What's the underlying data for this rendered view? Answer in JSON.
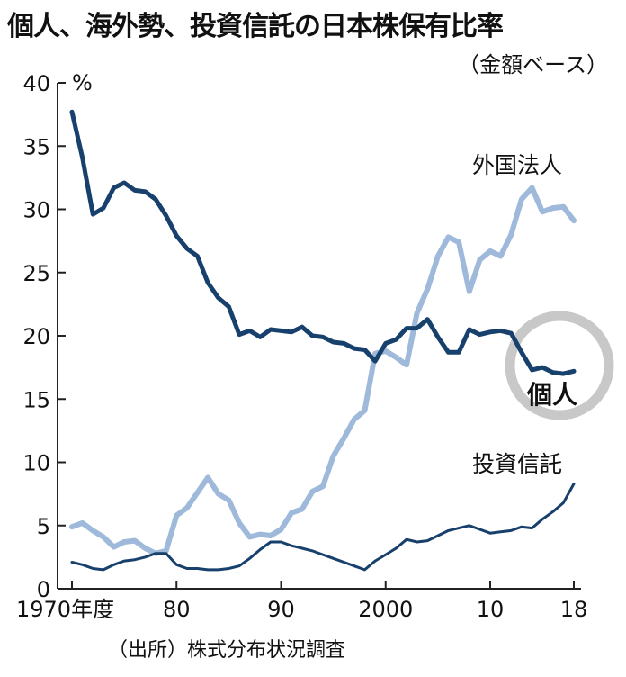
{
  "header": {
    "title": "個人、海外勢、投資信託の日本株保有比率",
    "subtitle": "（金額ベース）"
  },
  "footer": {
    "source": "（出所）株式分布状況調査"
  },
  "chart_data": {
    "type": "line",
    "ylabel": "%",
    "ylim": [
      0,
      40
    ],
    "yticks": [
      0,
      5,
      10,
      15,
      20,
      25,
      30,
      35,
      40
    ],
    "xlim": [
      1970,
      2018
    ],
    "xticks": [
      {
        "value": 1970,
        "label": "1970年度"
      },
      {
        "value": 1980,
        "label": "80"
      },
      {
        "value": 1990,
        "label": "90"
      },
      {
        "value": 2000,
        "label": "2000"
      },
      {
        "value": 2010,
        "label": "10"
      },
      {
        "value": 2018,
        "label": "18"
      }
    ],
    "x": [
      1970,
      1971,
      1972,
      1973,
      1974,
      1975,
      1976,
      1977,
      1978,
      1979,
      1980,
      1981,
      1982,
      1983,
      1984,
      1985,
      1986,
      1987,
      1988,
      1989,
      1990,
      1991,
      1992,
      1993,
      1994,
      1995,
      1996,
      1997,
      1998,
      1999,
      2000,
      2001,
      2002,
      2003,
      2004,
      2005,
      2006,
      2007,
      2008,
      2009,
      2010,
      2011,
      2012,
      2013,
      2014,
      2015,
      2016,
      2017,
      2018
    ],
    "series": [
      {
        "name": "個人",
        "color": "#17406d",
        "highlighted": true,
        "values": [
          37.7,
          34.1,
          29.6,
          30.1,
          31.7,
          32.1,
          31.5,
          31.4,
          30.8,
          29.5,
          27.9,
          26.9,
          26.3,
          24.2,
          23.0,
          22.3,
          20.1,
          20.4,
          19.9,
          20.5,
          20.4,
          20.3,
          20.7,
          20.0,
          19.9,
          19.5,
          19.4,
          19.0,
          18.9,
          18.0,
          19.4,
          19.7,
          20.6,
          20.6,
          21.3,
          19.9,
          18.7,
          18.7,
          20.5,
          20.1,
          20.3,
          20.4,
          20.2,
          18.7,
          17.3,
          17.5,
          17.1,
          17.0,
          17.2
        ]
      },
      {
        "name": "外国法人",
        "color": "#9eb9d9",
        "values": [
          4.9,
          5.2,
          4.6,
          4.1,
          3.3,
          3.7,
          3.8,
          3.2,
          2.8,
          3.0,
          5.8,
          6.4,
          7.6,
          8.8,
          7.5,
          7.0,
          5.2,
          4.1,
          4.3,
          4.2,
          4.7,
          6.0,
          6.3,
          7.7,
          8.1,
          10.5,
          11.9,
          13.4,
          14.1,
          18.6,
          18.8,
          18.3,
          17.7,
          21.8,
          23.7,
          26.3,
          27.8,
          27.4,
          23.5,
          26.0,
          26.7,
          26.3,
          28.0,
          30.8,
          31.7,
          29.8,
          30.1,
          30.2,
          29.1
        ]
      },
      {
        "name": "投資信託",
        "color": "#17406d",
        "values": [
          2.1,
          1.9,
          1.6,
          1.5,
          1.9,
          2.2,
          2.3,
          2.5,
          2.8,
          2.8,
          1.9,
          1.6,
          1.6,
          1.5,
          1.5,
          1.6,
          1.8,
          2.4,
          3.1,
          3.7,
          3.7,
          3.4,
          3.2,
          3.0,
          2.7,
          2.4,
          2.1,
          1.8,
          1.5,
          2.2,
          2.7,
          3.2,
          3.9,
          3.7,
          3.8,
          4.2,
          4.6,
          4.8,
          5.0,
          4.7,
          4.4,
          4.5,
          4.6,
          4.9,
          4.8,
          5.5,
          6.1,
          6.8,
          8.3
        ]
      }
    ]
  }
}
